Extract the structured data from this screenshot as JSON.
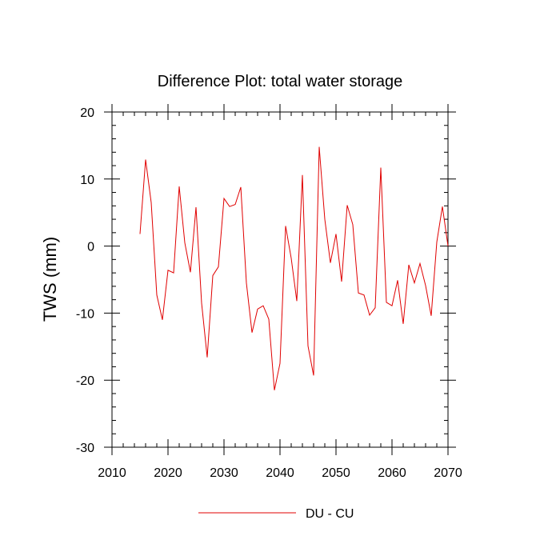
{
  "chart_data": {
    "type": "line",
    "title": "Difference Plot: total water storage",
    "xlabel": "",
    "ylabel": "TWS  (mm)",
    "xlim": [
      2010,
      2070
    ],
    "ylim": [
      -30,
      20
    ],
    "xticks": [
      2010,
      2020,
      2030,
      2040,
      2050,
      2060,
      2070
    ],
    "yticks": [
      -30,
      -20,
      -10,
      0,
      10,
      20
    ],
    "grid": false,
    "legend": "bottom-center",
    "series": [
      {
        "name": "DU - CU",
        "color": "#e00000",
        "x": [
          2015,
          2016,
          2017,
          2018,
          2019,
          2020,
          2021,
          2022,
          2023,
          2024,
          2025,
          2026,
          2027,
          2028,
          2029,
          2030,
          2031,
          2032,
          2033,
          2034,
          2035,
          2036,
          2037,
          2038,
          2039,
          2040,
          2041,
          2042,
          2043,
          2044,
          2045,
          2046,
          2047,
          2048,
          2049,
          2050,
          2051,
          2052,
          2053,
          2054,
          2055,
          2056,
          2057,
          2058,
          2059,
          2060,
          2061,
          2062,
          2063,
          2064,
          2065,
          2066,
          2067,
          2068,
          2069,
          2070
        ],
        "y": [
          1.8,
          12.9,
          6.5,
          -7.3,
          -11.0,
          -3.6,
          -4.0,
          8.9,
          0.5,
          -3.9,
          5.8,
          -8.5,
          -16.6,
          -4.4,
          -3.1,
          7.1,
          5.9,
          6.2,
          8.8,
          -5.5,
          -12.9,
          -9.4,
          -8.9,
          -10.9,
          -21.5,
          -17.5,
          3.0,
          -1.8,
          -8.2,
          10.6,
          -14.9,
          -19.3,
          14.8,
          4.0,
          -2.5,
          1.8,
          -5.3,
          6.1,
          3.2,
          -7.0,
          -7.3,
          -10.3,
          -9.2,
          11.7,
          -8.4,
          -8.9,
          -5.1,
          -11.6,
          -2.8,
          -5.5,
          -2.6,
          -5.9,
          -10.4,
          0.6,
          5.9,
          0.0
        ]
      }
    ]
  }
}
